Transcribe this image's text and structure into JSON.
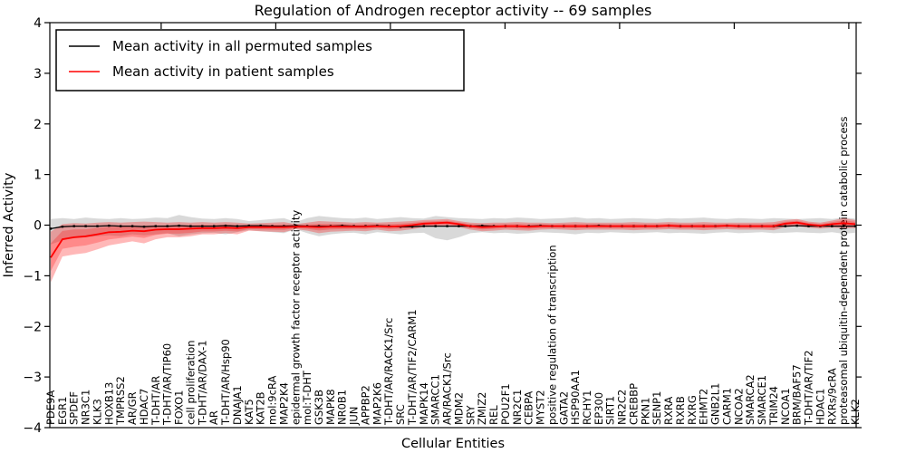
{
  "chart_data": {
    "type": "line",
    "title": "Regulation of Androgen receptor activity -- 69 samples",
    "xlabel": "Cellular Entities",
    "ylabel": "Inferred Activity",
    "ylim": [
      -4,
      4
    ],
    "yticks": [
      4,
      3,
      2,
      1,
      0,
      -1,
      -2,
      -3,
      -4
    ],
    "grid": false,
    "legend_position": "upper left",
    "categories": [
      "PDE9A",
      "EGR1",
      "SPDEF",
      "NR3C1",
      "KLK3",
      "HOXB13",
      "TMPRSS2",
      "AR/GR",
      "HDAC7",
      "T-DHT/AR",
      "T-DHT/AR/TIP60",
      "FOXO1",
      "cell proliferation",
      "T-DHT/AR/DAX-1",
      "AR",
      "T-DHT/AR/Hsp90",
      "DNAJA1",
      "KAT5",
      "KAT2B",
      "mol:9cRA",
      "MAP2K4",
      "epidermal growth factor receptor activity",
      "mol:T-DHT",
      "GSK3B",
      "MAPK8",
      "NR0B1",
      "JUN",
      "APPBP2",
      "MAP2K6",
      "T-DHT/AR/RACK1/Src",
      "SRC",
      "T-DHT/AR/TIF2/CARM1",
      "MAPK14",
      "SMARCC1",
      "AR/RACK1/Src",
      "MDM2",
      "SRY",
      "ZMIZ2",
      "REL",
      "POU2F1",
      "NR2C1",
      "CEBPA",
      "MYST2",
      "positive regulation of transcription",
      "GATA2",
      "HSP90AA1",
      "RCHY1",
      "EP300",
      "SIRT1",
      "NR2C2",
      "CREBBP",
      "PKN1",
      "SENP1",
      "RXRA",
      "RXRB",
      "RXRG",
      "EHMT2",
      "GNB2L1",
      "CARM1",
      "NCOA2",
      "SMARCA2",
      "SMARCE1",
      "TRIM24",
      "NCOA1",
      "BRM/BAF57",
      "T-DHT/AR/TIF2",
      "HDAC1",
      "RXRs/9cRA",
      "proteasomal ubiquitin-dependent protein catabolic process",
      "KLK2"
    ],
    "series": [
      {
        "name": "Mean activity in all permuted samples",
        "color": "#000000",
        "line_width": 1.3,
        "markers": true,
        "band_color": "#000000",
        "band_opacity": 0.15,
        "inner_band": false,
        "values": [
          -0.07,
          -0.03,
          -0.02,
          -0.02,
          -0.02,
          -0.01,
          -0.02,
          -0.02,
          -0.03,
          -0.02,
          -0.02,
          -0.01,
          -0.02,
          -0.02,
          -0.02,
          -0.01,
          -0.02,
          -0.01,
          -0.01,
          -0.02,
          -0.02,
          -0.01,
          -0.02,
          -0.02,
          -0.02,
          -0.01,
          -0.02,
          -0.02,
          -0.01,
          -0.02,
          -0.03,
          -0.03,
          -0.02,
          -0.02,
          -0.02,
          -0.02,
          -0.02,
          -0.01,
          -0.02,
          -0.02,
          -0.02,
          -0.02,
          -0.01,
          -0.02,
          -0.02,
          -0.02,
          -0.02,
          -0.01,
          -0.02,
          -0.02,
          -0.02,
          -0.02,
          -0.02,
          -0.01,
          -0.02,
          -0.02,
          -0.02,
          -0.02,
          -0.01,
          -0.02,
          -0.02,
          -0.02,
          -0.02,
          -0.02,
          -0.01,
          -0.02,
          -0.02,
          -0.02,
          -0.02,
          -0.02
        ],
        "band_hi": [
          0.12,
          0.14,
          0.12,
          0.15,
          0.13,
          0.12,
          0.14,
          0.12,
          0.13,
          0.15,
          0.14,
          0.2,
          0.16,
          0.13,
          0.12,
          0.14,
          0.12,
          0.08,
          0.1,
          0.12,
          0.14,
          0.06,
          0.14,
          0.18,
          0.16,
          0.14,
          0.13,
          0.15,
          0.12,
          0.14,
          0.16,
          0.14,
          0.13,
          0.18,
          0.16,
          0.14,
          0.13,
          0.12,
          0.14,
          0.13,
          0.15,
          0.14,
          0.12,
          0.13,
          0.14,
          0.16,
          0.13,
          0.14,
          0.12,
          0.13,
          0.14,
          0.13,
          0.12,
          0.14,
          0.13,
          0.14,
          0.15,
          0.13,
          0.12,
          0.14,
          0.13,
          0.12,
          0.14,
          0.13,
          0.12,
          0.13,
          0.14,
          0.12,
          0.15,
          0.13
        ],
        "band_lo": [
          -0.38,
          -0.3,
          -0.26,
          -0.24,
          -0.22,
          -0.2,
          -0.22,
          -0.18,
          -0.2,
          -0.18,
          -0.16,
          -0.22,
          -0.18,
          -0.16,
          -0.15,
          -0.18,
          -0.14,
          -0.1,
          -0.12,
          -0.14,
          -0.16,
          -0.08,
          -0.16,
          -0.22,
          -0.18,
          -0.16,
          -0.15,
          -0.18,
          -0.14,
          -0.16,
          -0.18,
          -0.16,
          -0.15,
          -0.26,
          -0.3,
          -0.24,
          -0.16,
          -0.14,
          -0.16,
          -0.15,
          -0.17,
          -0.16,
          -0.14,
          -0.15,
          -0.16,
          -0.18,
          -0.15,
          -0.16,
          -0.14,
          -0.15,
          -0.16,
          -0.15,
          -0.14,
          -0.16,
          -0.15,
          -0.16,
          -0.17,
          -0.15,
          -0.14,
          -0.16,
          -0.15,
          -0.14,
          -0.16,
          -0.15,
          -0.14,
          -0.15,
          -0.16,
          -0.14,
          -0.17,
          -0.15
        ]
      },
      {
        "name": "Mean activity in patient samples",
        "color": "#ff0000",
        "line_width": 1.8,
        "markers": false,
        "band_color": "#ff0000",
        "band_opacity": 0.28,
        "inner_band": true,
        "values": [
          -0.64,
          -0.28,
          -0.24,
          -0.22,
          -0.18,
          -0.14,
          -0.13,
          -0.11,
          -0.12,
          -0.09,
          -0.08,
          -0.08,
          -0.07,
          -0.06,
          -0.06,
          -0.05,
          -0.06,
          -0.04,
          -0.04,
          -0.04,
          -0.04,
          -0.03,
          -0.03,
          -0.04,
          -0.03,
          -0.03,
          -0.03,
          -0.03,
          -0.02,
          -0.03,
          -0.02,
          0.0,
          0.03,
          0.04,
          0.05,
          0.02,
          -0.02,
          -0.04,
          -0.03,
          -0.02,
          -0.02,
          -0.03,
          -0.02,
          -0.02,
          -0.02,
          -0.02,
          -0.02,
          -0.02,
          -0.02,
          -0.02,
          -0.02,
          -0.02,
          -0.02,
          -0.01,
          -0.02,
          -0.02,
          -0.02,
          -0.02,
          -0.01,
          -0.02,
          -0.02,
          -0.02,
          -0.02,
          0.03,
          0.05,
          0.01,
          -0.01,
          0.02,
          0.04,
          0.02
        ],
        "band_hi": [
          -0.13,
          0.02,
          0.04,
          0.03,
          0.05,
          0.06,
          0.05,
          0.06,
          0.07,
          0.06,
          0.05,
          0.06,
          0.05,
          0.06,
          0.05,
          0.06,
          0.05,
          0.03,
          0.04,
          0.05,
          0.06,
          0.02,
          0.05,
          0.08,
          0.07,
          0.06,
          0.05,
          0.06,
          0.05,
          0.06,
          0.07,
          0.08,
          0.1,
          0.11,
          0.12,
          0.08,
          0.05,
          0.04,
          0.05,
          0.05,
          0.06,
          0.05,
          0.05,
          0.04,
          0.05,
          0.06,
          0.05,
          0.05,
          0.05,
          0.05,
          0.06,
          0.05,
          0.05,
          0.06,
          0.05,
          0.05,
          0.06,
          0.05,
          0.05,
          0.05,
          0.05,
          0.05,
          0.06,
          0.1,
          0.12,
          0.07,
          0.05,
          0.09,
          0.14,
          0.1
        ],
        "band_lo": [
          -1.13,
          -0.62,
          -0.58,
          -0.55,
          -0.48,
          -0.4,
          -0.36,
          -0.32,
          -0.36,
          -0.28,
          -0.24,
          -0.24,
          -0.22,
          -0.18,
          -0.18,
          -0.16,
          -0.18,
          -0.11,
          -0.12,
          -0.13,
          -0.14,
          -0.08,
          -0.11,
          -0.16,
          -0.13,
          -0.12,
          -0.11,
          -0.12,
          -0.09,
          -0.12,
          -0.11,
          -0.08,
          -0.04,
          -0.03,
          -0.02,
          -0.04,
          -0.09,
          -0.12,
          -0.11,
          -0.09,
          -0.1,
          -0.11,
          -0.09,
          -0.08,
          -0.09,
          -0.1,
          -0.09,
          -0.09,
          -0.09,
          -0.09,
          -0.1,
          -0.09,
          -0.09,
          -0.08,
          -0.09,
          -0.09,
          -0.1,
          -0.09,
          -0.08,
          -0.09,
          -0.09,
          -0.09,
          -0.1,
          -0.04,
          -0.02,
          -0.05,
          -0.07,
          -0.05,
          -0.06,
          -0.06
        ]
      }
    ]
  },
  "colors": {
    "background": "#ffffff",
    "frame": "#000000",
    "permuted_line": "#000000",
    "patient_line": "#ff0000"
  }
}
